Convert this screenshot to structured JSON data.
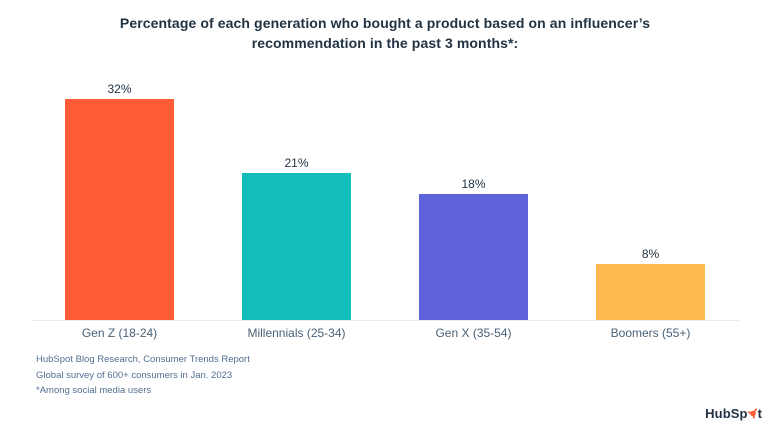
{
  "chart_data": {
    "type": "bar",
    "title": "Percentage of each generation who bought a product based on an influencer’s recommendation in the past 3 months*:",
    "categories": [
      "Gen Z (18-24)",
      "Millennials (25-34)",
      "Gen X (35-54)",
      "Boomers (55+)"
    ],
    "values": [
      32,
      21,
      18,
      8
    ],
    "value_labels": [
      "32%",
      "21%",
      "18%",
      "8%"
    ],
    "bar_colors": [
      "#FF5C35",
      "#12BEB9",
      "#5F63D9",
      "#FDB94E"
    ],
    "xlabel": "",
    "ylabel": "",
    "ylim": [
      0,
      34
    ],
    "grid": false,
    "legend": false,
    "value_label_position": "above-bar"
  },
  "footer": {
    "lines": [
      "HubSpot Blog Research, Consumer Trends Report",
      "Global survey of 600+ consumers in Jan. 2023",
      "*Among social media users"
    ]
  },
  "branding": {
    "logo_name": "HubSpot",
    "wordmark_pre": "HubSp",
    "wordmark_post": "t",
    "sprocket_color": "#FF5C35",
    "text_color": "#213343"
  },
  "colors": {
    "title": "#213343",
    "value_labels": "#213343",
    "category_labels": "#4a6277",
    "source_text": "#516f90",
    "baseline": "#e8ebee",
    "background": "#ffffff"
  }
}
